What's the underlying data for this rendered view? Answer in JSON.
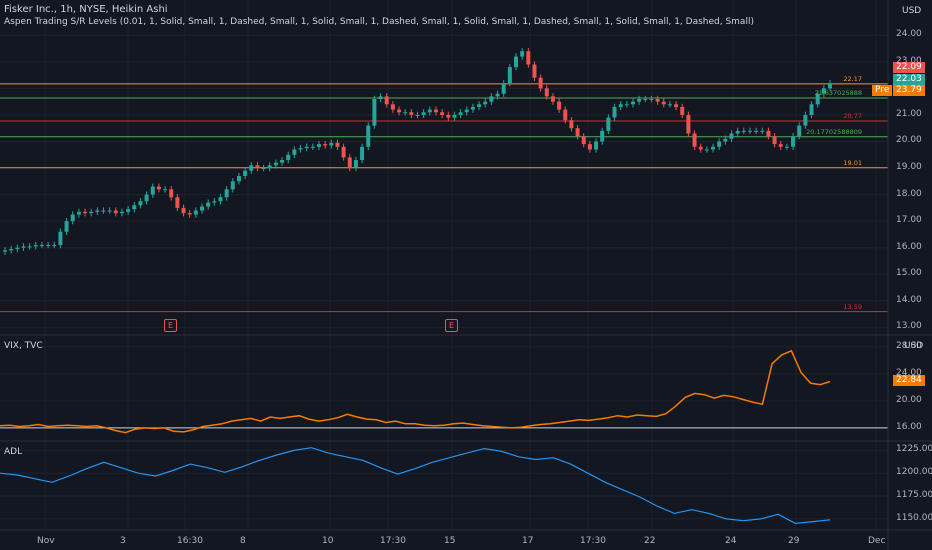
{
  "header": {
    "symbol_title": "Fisker Inc., 1h, NYSE, Heikin Ashi",
    "indicator": "Aspen Trading S/R Levels (0.01, 1, Solid, Small, 1, Dashed, Small, 1, Solid, Small, 1, Dashed, Small, 1, Solid, Small, 1, Dashed, Small, 1, Solid, Small, 1, Dashed, Small)"
  },
  "colors": {
    "background": "#131722",
    "up": "#26a69a",
    "down": "#ef5350",
    "vix_line": "#f57c00",
    "adl_line": "#2196f3",
    "level_orange": "#f59a23",
    "level_green": "#4caf50",
    "level_red": "#d32f2f"
  },
  "price_pane": {
    "currency": "USD",
    "axis_labels": [
      "24.00",
      "23.00",
      "22.00",
      "21.00",
      "20.00",
      "19.00",
      "18.00",
      "17.00",
      "16.00",
      "15.00",
      "14.00",
      "13.00"
    ],
    "current_price": "22.09",
    "level_badge": "22.03",
    "premarket_label": "Pre",
    "premarket_price": "23.79",
    "levels": [
      {
        "label": "22.17",
        "value": 22.17,
        "color": "orange"
      },
      {
        "label": "21.637025888",
        "value": 21.64,
        "color": "green"
      },
      {
        "label": "20.77",
        "value": 20.77,
        "color": "red"
      },
      {
        "label": "20.17702588809",
        "value": 20.18,
        "color": "green"
      },
      {
        "label": "19.01",
        "value": 19.01,
        "color": "orange"
      },
      {
        "label": "13.59",
        "value": 13.59,
        "color": "red"
      }
    ],
    "earnings_marker": "E"
  },
  "vix_pane": {
    "label": "VIX, TVC",
    "currency": "USD",
    "axis_labels": [
      "28.00",
      "24.00",
      "20.00",
      "16.00"
    ],
    "current_value": "22.84"
  },
  "adl_pane": {
    "label": "ADL",
    "axis_labels": [
      "1225.00",
      "1200.00",
      "1175.00",
      "1150.00"
    ]
  },
  "time_axis": [
    "Nov",
    "3",
    "16:30",
    "8",
    "10",
    "17:30",
    "15",
    "17",
    "17:30",
    "22",
    "24",
    "29",
    "Dec"
  ],
  "chart_data": [
    {
      "type": "candlestick",
      "title": "Fisker Inc., 1h, NYSE, Heikin Ashi",
      "ylabel": "USD",
      "ylim": [
        12.9,
        24.5
      ],
      "y_ticks": [
        13,
        14,
        15,
        16,
        17,
        18,
        19,
        20,
        21,
        22,
        23,
        24
      ],
      "x_ticks": [
        "Nov",
        "3",
        "16:30",
        "8",
        "10",
        "17:30",
        "15",
        "17",
        "17:30",
        "22",
        "24",
        "29",
        "Dec"
      ],
      "closes": [
        15.9,
        15.95,
        16.0,
        16.05,
        16.05,
        16.1,
        16.1,
        16.1,
        16.1,
        16.6,
        17.0,
        17.25,
        17.35,
        17.3,
        17.35,
        17.4,
        17.4,
        17.4,
        17.3,
        17.35,
        17.45,
        17.6,
        17.75,
        18.0,
        18.3,
        18.2,
        18.2,
        17.9,
        17.5,
        17.3,
        17.25,
        17.4,
        17.55,
        17.7,
        17.75,
        17.9,
        18.2,
        18.5,
        18.7,
        18.9,
        19.1,
        19.0,
        19.0,
        19.1,
        19.2,
        19.3,
        19.5,
        19.7,
        19.75,
        19.8,
        19.8,
        19.9,
        19.85,
        19.95,
        19.8,
        19.4,
        19.0,
        19.3,
        19.8,
        20.6,
        21.6,
        21.7,
        21.4,
        21.2,
        21.1,
        21.1,
        21.0,
        21.0,
        21.1,
        21.2,
        21.1,
        21.0,
        20.9,
        21.0,
        21.1,
        21.2,
        21.3,
        21.4,
        21.5,
        21.7,
        21.8,
        22.2,
        22.8,
        23.2,
        23.4,
        22.9,
        22.4,
        22.0,
        21.7,
        21.5,
        21.2,
        20.8,
        20.5,
        20.2,
        19.9,
        19.7,
        20.0,
        20.4,
        20.9,
        21.3,
        21.4,
        21.4,
        21.5,
        21.6,
        21.6,
        21.6,
        21.5,
        21.4,
        21.4,
        21.3,
        21.0,
        20.3,
        19.8,
        19.7,
        19.7,
        19.8,
        20.0,
        20.1,
        20.3,
        20.4,
        20.4,
        20.4,
        20.4,
        20.4,
        20.2,
        19.9,
        19.8,
        19.8,
        20.2,
        20.6,
        21.0,
        21.4,
        21.8,
        22.0,
        22.2
      ]
    },
    {
      "type": "line",
      "title": "VIX, TVC",
      "ylim": [
        14.5,
        29
      ],
      "y_ticks": [
        16,
        20,
        24,
        28
      ],
      "values": [
        16.3,
        16.4,
        16.2,
        16.3,
        16.5,
        16.2,
        16.3,
        16.4,
        16.3,
        16.2,
        16.3,
        16.0,
        15.6,
        15.3,
        15.8,
        16.0,
        15.9,
        16.0,
        15.5,
        15.4,
        15.7,
        16.2,
        16.4,
        16.6,
        17.0,
        17.2,
        17.4,
        17.0,
        17.6,
        17.4,
        17.6,
        17.8,
        17.3,
        17.0,
        17.2,
        17.5,
        18.0,
        17.6,
        17.3,
        17.2,
        16.8,
        17.0,
        16.6,
        16.6,
        16.4,
        16.3,
        16.4,
        16.6,
        16.7,
        16.5,
        16.3,
        16.2,
        16.1,
        16.0,
        16.1,
        16.3,
        16.5,
        16.6,
        16.8,
        17.0,
        17.2,
        17.1,
        17.3,
        17.5,
        17.8,
        17.6,
        17.9,
        17.8,
        17.7,
        18.1,
        19.2,
        20.5,
        21.1,
        20.9,
        20.4,
        20.8,
        20.6,
        20.2,
        19.8,
        19.5,
        25.5,
        26.8,
        27.4,
        24.2,
        22.6,
        22.4,
        22.84
      ]
    },
    {
      "type": "line",
      "title": "ADL",
      "ylim": [
        1140,
        1232
      ],
      "y_ticks": [
        1150,
        1175,
        1200,
        1225
      ],
      "values": [
        1200,
        1198,
        1194,
        1190,
        1197,
        1205,
        1212,
        1206,
        1200,
        1197,
        1203,
        1210,
        1206,
        1201,
        1207,
        1214,
        1220,
        1225,
        1228,
        1222,
        1218,
        1214,
        1206,
        1199,
        1205,
        1212,
        1217,
        1222,
        1227,
        1224,
        1218,
        1215,
        1217,
        1210,
        1200,
        1190,
        1182,
        1174,
        1164,
        1156,
        1160,
        1156,
        1150,
        1148,
        1150,
        1155,
        1145,
        1147,
        1149
      ]
    }
  ]
}
